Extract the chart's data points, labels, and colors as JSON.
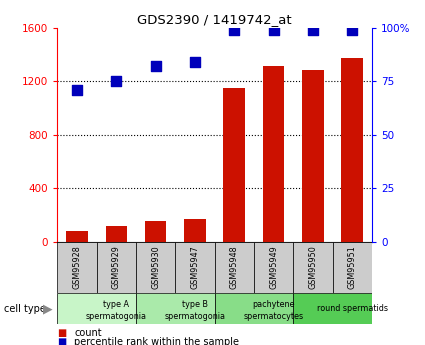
{
  "title": "GDS2390 / 1419742_at",
  "samples": [
    "GSM95928",
    "GSM95929",
    "GSM95930",
    "GSM95947",
    "GSM95948",
    "GSM95949",
    "GSM95950",
    "GSM95951"
  ],
  "counts": [
    75,
    115,
    155,
    165,
    1150,
    1310,
    1280,
    1370
  ],
  "percentile_ranks": [
    71,
    75,
    82,
    84,
    99,
    99,
    99,
    99
  ],
  "cell_types": [
    {
      "label1": "type A",
      "label2": "spermatogonia",
      "span": [
        0,
        2
      ],
      "color": "#c8f5c8"
    },
    {
      "label1": "type B",
      "label2": "spermatogonia",
      "span": [
        2,
        4
      ],
      "color": "#aaeaaa"
    },
    {
      "label1": "pachytene",
      "label2": "spermatocytes",
      "span": [
        4,
        6
      ],
      "color": "#88dd88"
    },
    {
      "label1": "round spermatids",
      "label2": "",
      "span": [
        6,
        8
      ],
      "color": "#55cc55"
    }
  ],
  "ylim_left": [
    0,
    1600
  ],
  "ylim_right": [
    0,
    100
  ],
  "yticks_left": [
    0,
    400,
    800,
    1200,
    1600
  ],
  "yticks_right": [
    0,
    25,
    50,
    75,
    100
  ],
  "bar_color": "#cc1100",
  "dot_color": "#0000bb",
  "bar_width": 0.55,
  "dot_size": 45,
  "background_color": "#ffffff",
  "sample_box_color": "#cccccc",
  "legend_items": [
    {
      "label": "count",
      "color": "#cc1100"
    },
    {
      "label": "percentile rank within the sample",
      "color": "#0000bb"
    }
  ]
}
